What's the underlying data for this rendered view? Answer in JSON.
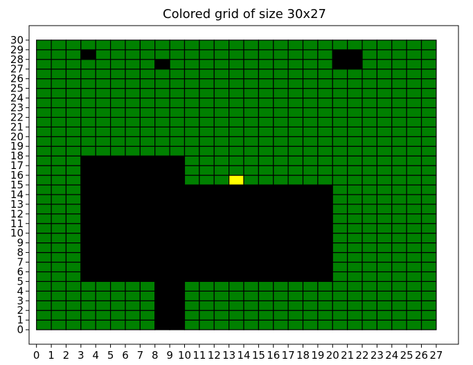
{
  "chart_data": {
    "type": "heatmap",
    "title": "Colored grid of size 30x27",
    "xlabel": "",
    "ylabel": "",
    "cols": 27,
    "rows": 30,
    "xlim": [
      -0.5,
      28.5
    ],
    "ylim": [
      -1.5,
      31.5
    ],
    "x_ticks": [
      "0",
      "1",
      "2",
      "3",
      "4",
      "5",
      "6",
      "7",
      "8",
      "9",
      "10",
      "11",
      "12",
      "13",
      "14",
      "15",
      "16",
      "17",
      "18",
      "19",
      "20",
      "21",
      "22",
      "23",
      "24",
      "25",
      "26",
      "27"
    ],
    "y_ticks": [
      "0",
      "1",
      "2",
      "3",
      "4",
      "5",
      "6",
      "7",
      "8",
      "9",
      "10",
      "11",
      "12",
      "13",
      "14",
      "15",
      "16",
      "17",
      "18",
      "19",
      "20",
      "21",
      "22",
      "23",
      "24",
      "25",
      "26",
      "27",
      "28",
      "29",
      "30"
    ],
    "colors": {
      "green": "#008000",
      "black": "#000000",
      "yellow": "#ffff00"
    },
    "background_color": "green",
    "regions": [
      {
        "color": "black",
        "x": [
          3,
          10
        ],
        "y": [
          5,
          18
        ]
      },
      {
        "color": "black",
        "x": [
          10,
          20
        ],
        "y": [
          5,
          15
        ]
      },
      {
        "color": "black",
        "x": [
          8,
          10
        ],
        "y": [
          0,
          5
        ]
      },
      {
        "color": "black",
        "x": [
          3,
          4
        ],
        "y": [
          28,
          29
        ]
      },
      {
        "color": "black",
        "x": [
          8,
          9
        ],
        "y": [
          27,
          28
        ]
      },
      {
        "color": "black",
        "x": [
          20,
          22
        ],
        "y": [
          27,
          29
        ]
      },
      {
        "color": "yellow",
        "x": [
          13,
          14
        ],
        "y": [
          15,
          16
        ]
      }
    ],
    "grid": true,
    "legend": "none"
  }
}
